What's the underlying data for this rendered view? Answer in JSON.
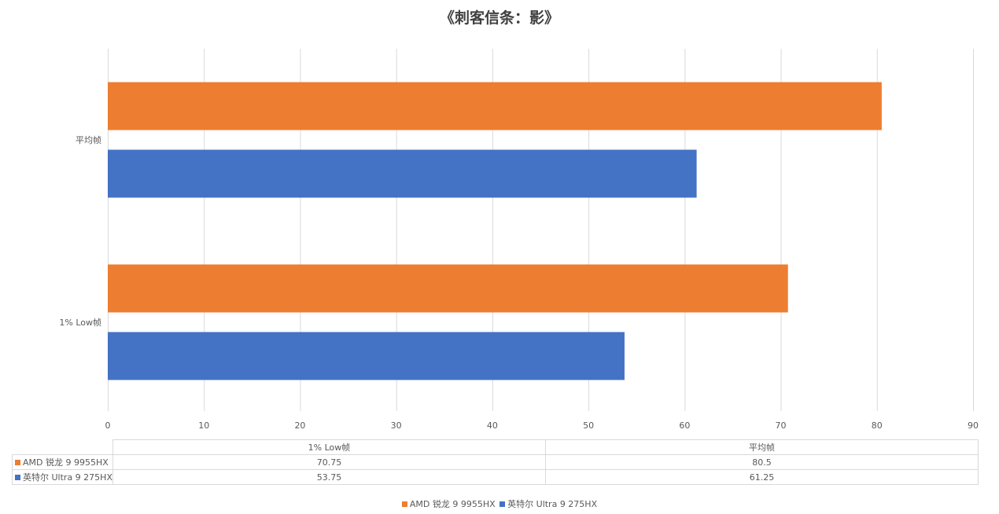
{
  "colors": {
    "amd": "#ED7D31",
    "intel": "#4472C4",
    "grid": "#D9D9D9"
  },
  "chart_data": {
    "type": "bar",
    "orientation": "horizontal",
    "title": "《刺客信条：影》",
    "categories": [
      "平均帧",
      "1% Low帧"
    ],
    "series": [
      {
        "name": "AMD 锐龙 9 9955HX",
        "values": [
          80.5,
          70.75
        ]
      },
      {
        "name": "英特尔 Ultra 9 275HX",
        "values": [
          61.25,
          53.75
        ]
      }
    ],
    "xlim": [
      0,
      90
    ],
    "xticks": [
      0,
      10,
      20,
      30,
      40,
      50,
      60,
      70,
      80,
      90
    ],
    "grid": true,
    "legend": "bottom",
    "data_table": {
      "columns": [
        "1% Low帧",
        "平均帧"
      ],
      "rows": [
        {
          "name": "AMD 锐龙 9 9955HX",
          "values": [
            "70.75",
            "80.5"
          ]
        },
        {
          "name": "英特尔 Ultra 9 275HX",
          "values": [
            "53.75",
            "61.25"
          ]
        }
      ]
    }
  }
}
